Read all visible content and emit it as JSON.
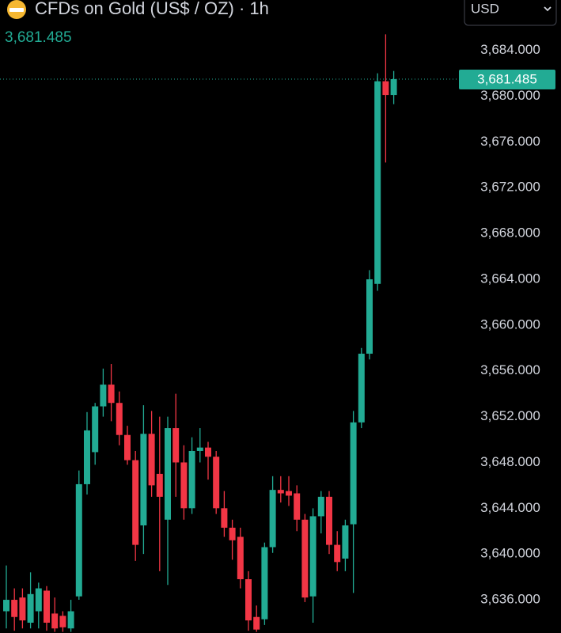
{
  "chart_data": {
    "type": "candlestick",
    "title": "CFDs on Gold (US$ / OZ) · 1h",
    "currency": "USD",
    "last_price": {
      "value": 3681.485,
      "label": "3,681.485"
    },
    "up_color": "#22ab94",
    "down_color": "#f23645",
    "open": [
      3635,
      3636,
      3636.2,
      3634,
      3635,
      3636.8,
      3634.8,
      3634.6,
      3633.5,
      3636.3,
      3646.1,
      3648.9,
      3652.9,
      3654.8,
      3653.2,
      3650.4,
      3648.2,
      3642.5,
      3650.5,
      3647,
      3643,
      3651,
      3648,
      3644,
      3649,
      3649.3,
      3648.5,
      3644,
      3642.3,
      3641.5,
      3637.8,
      3634.5,
      3634.3,
      3640.6,
      3645.6,
      3645.5,
      3645.3,
      3643,
      3636.3,
      3643.3,
      3645,
      3640.8,
      3639.6,
      3642.6,
      3651.5,
      3657.5,
      3663.6,
      3681.3,
      3680.1
    ],
    "high": [
      3639,
      3637,
      3637,
      3638.4,
      3637.5,
      3637.2,
      3636.2,
      3635,
      3636,
      3647.3,
      3652.4,
      3653.2,
      3656.2,
      3656.6,
      3654.2,
      3651.2,
      3649,
      3653,
      3652.5,
      3652,
      3652,
      3654,
      3649.5,
      3650.2,
      3651,
      3649.8,
      3649,
      3645.5,
      3643,
      3642.3,
      3638.5,
      3635.5,
      3641,
      3646.8,
      3646.8,
      3646.8,
      3646,
      3643.5,
      3644,
      3645.5,
      3645.5,
      3642,
      3643,
      3652.5,
      3658,
      3664.8,
      3682,
      3685.4,
      3682.2
    ],
    "low": [
      3633.5,
      3633.3,
      3633.5,
      3633.5,
      3633.5,
      3633.3,
      3633.2,
      3633.2,
      3633.2,
      3636,
      3645.2,
      3647.8,
      3652,
      3651.6,
      3649.5,
      3647.8,
      3639.4,
      3640,
      3645,
      3638.5,
      3637.3,
      3645,
      3643,
      3643.5,
      3648,
      3646.5,
      3643.5,
      3641.5,
      3639.5,
      3637,
      3633.3,
      3633.2,
      3633.8,
      3640.1,
      3644.5,
      3644.2,
      3642,
      3635.8,
      3634,
      3641.8,
      3640,
      3638.5,
      3638.5,
      3636.6,
      3651,
      3657,
      3663,
      3674.2,
      3679.3
    ],
    "close": [
      3636,
      3634.5,
      3634.2,
      3636.5,
      3637,
      3634,
      3633.5,
      3633.6,
      3635,
      3646.1,
      3650.8,
      3652.9,
      3654.8,
      3653.2,
      3650.4,
      3648.2,
      3640.8,
      3650.5,
      3646,
      3645,
      3651,
      3648,
      3644,
      3649,
      3649.3,
      3648.5,
      3644,
      3642.3,
      3641.2,
      3637.8,
      3634.2,
      3633.4,
      3640.6,
      3645.6,
      3645.3,
      3645.1,
      3643,
      3636.2,
      3643.3,
      3645,
      3640.8,
      3639.3,
      3642.5,
      3651.5,
      3657.5,
      3664,
      3681.3,
      3680.1,
      3681.485
    ],
    "ylim": [
      3633.1,
      3688.4
    ],
    "yticks": [
      {
        "value": 3684,
        "label": "3,684.000"
      },
      {
        "value": 3680,
        "label": "3,680.000"
      },
      {
        "value": 3676,
        "label": "3,676.000"
      },
      {
        "value": 3672,
        "label": "3,672.000"
      },
      {
        "value": 3668,
        "label": "3,668.000"
      },
      {
        "value": 3664,
        "label": "3,664.000"
      },
      {
        "value": 3660,
        "label": "3,660.000"
      },
      {
        "value": 3656,
        "label": "3,656.000"
      },
      {
        "value": 3652,
        "label": "3,652.000"
      },
      {
        "value": 3648,
        "label": "3,648.000"
      },
      {
        "value": 3644,
        "label": "3,644.000"
      },
      {
        "value": 3640,
        "label": "3,640.000"
      },
      {
        "value": 3636,
        "label": "3,636.000"
      }
    ]
  }
}
